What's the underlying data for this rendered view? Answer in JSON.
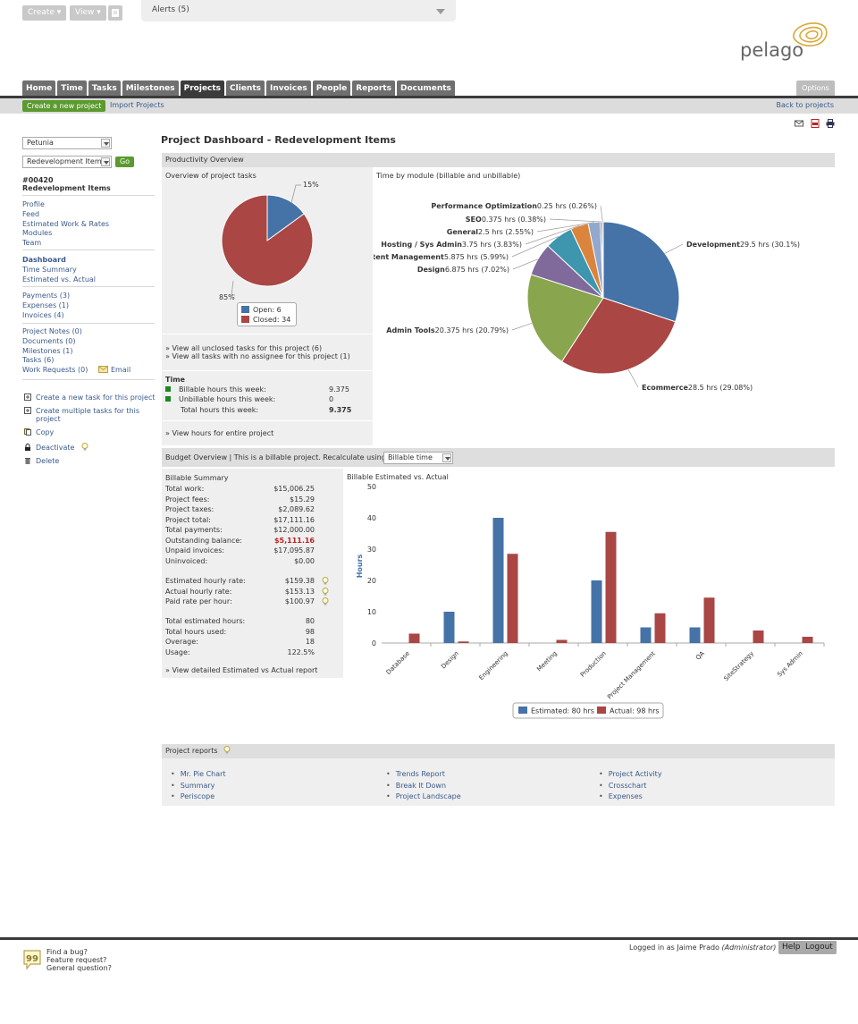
{
  "top": {
    "create_label": "Create ▾",
    "view_label": "View ▾",
    "alerts_label": "Alerts (5)",
    "logo_text": "pelago"
  },
  "nav": {
    "tabs": [
      "Home",
      "Time",
      "Tasks",
      "Milestones",
      "Projects",
      "Clients",
      "Invoices",
      "People",
      "Reports",
      "Documents"
    ],
    "active": "Projects",
    "options_label": "Options"
  },
  "subbar": {
    "create_label": "Create a new project",
    "import_label": "Import Projects",
    "back_label": "Back to projects"
  },
  "sidebar": {
    "client_select": "Petunia",
    "project_select": "Redevelopment Item",
    "go_label": "Go",
    "project_code": "#00420",
    "project_name": "Redevelopment Items",
    "group1": [
      "Profile",
      "Feed",
      "Estimated Work & Rates",
      "Modules",
      "Team"
    ],
    "dashboard": "Dashboard",
    "group2": [
      "Time Summary",
      "Estimated vs. Actual"
    ],
    "group3": [
      "Payments (3)",
      "Expenses (1)",
      "Invoices (4)"
    ],
    "group4": [
      "Project Notes (0)",
      "Documents (0)",
      "Milestones (1)",
      "Tasks (6)",
      "Work Requests (0)"
    ],
    "email_label": "Email",
    "actions": {
      "new_task": "Create a new task for this project",
      "multi_task_1": "Create multiple tasks for this",
      "multi_task_2": "project",
      "copy": "Copy",
      "deactivate": "Deactivate",
      "delete": "Delete"
    }
  },
  "main": {
    "title": "Project Dashboard - Redevelopment Items",
    "productivity": {
      "header": "Productivity Overview",
      "tasks_title": "Overview of project tasks",
      "pct_open": "15%",
      "pct_closed": "85%",
      "legend_open": "Open: 6",
      "legend_closed": "Closed: 34",
      "link_unclosed": "» View all unclosed tasks for this project (6)",
      "link_unassigned": "» View all tasks with no assignee for this project (1)",
      "time_title": "Time",
      "billable_label": "Billable hours this week:",
      "billable_value": "9.375",
      "unbillable_label": "Unbillable hours this week:",
      "unbillable_value": "0",
      "total_label": "Total hours this week:",
      "total_value": "9.375",
      "link_hours": "» View hours for entire project",
      "module_title": "Time by module (billable and unbillable)"
    },
    "budget": {
      "header": "Budget Overview | This is a billable project. Recalculate using:",
      "recalc_select": "Billable time",
      "summary_title": "Billable Summary",
      "rows1": [
        {
          "label": "Total work:",
          "value": "$15,006.25"
        },
        {
          "label": "Project fees:",
          "value": "$15.29"
        },
        {
          "label": "Project taxes:",
          "value": "$2,089.62"
        },
        {
          "label": "Project total:",
          "value": "$17,111.16"
        },
        {
          "label": "Total payments:",
          "value": "$12,000.00"
        },
        {
          "label": "Outstanding balance:",
          "value": "$5,111.16"
        },
        {
          "label": "Unpaid invoices:",
          "value": "$17,095.87"
        },
        {
          "label": "Uninvoiced:",
          "value": "$0.00"
        }
      ],
      "rows2": [
        {
          "label": "Estimated hourly rate:",
          "value": "$159.38"
        },
        {
          "label": "Actual hourly rate:",
          "value": "$153.13"
        },
        {
          "label": "Paid rate per hour:",
          "value": "$100.97"
        }
      ],
      "rows3": [
        {
          "label": "Total estimated hours:",
          "value": "80"
        },
        {
          "label": "Total hours used:",
          "value": "98"
        },
        {
          "label": "Overage:",
          "value": "18"
        },
        {
          "label": "Usage:",
          "value": "122.5%"
        }
      ],
      "link_report": "» View detailed Estimated vs Actual report",
      "chart_title": "Billable Estimated vs. Actual"
    },
    "reports": {
      "header": "Project reports",
      "col1": [
        "Mr. Pie Chart",
        "Summary",
        "Periscope"
      ],
      "col2": [
        "Trends Report",
        "Break It Down",
        "Project Landscape"
      ],
      "col3": [
        "Project Activity",
        "Crosschart",
        "Expenses"
      ]
    }
  },
  "footer": {
    "bug": "Find a bug?",
    "feature": "Feature request?",
    "general": "General question?",
    "logged_in": "Logged in as Jaime Prado",
    "role": "(Administrator)",
    "help": "Help",
    "logout": "Logout"
  },
  "colors": {
    "blue": "#4572a7",
    "red": "#aa4643",
    "green": "#89a54e",
    "purple": "#80699b",
    "teal": "#3d96ae",
    "orange": "#db843d",
    "lightblue": "#92a8cd"
  },
  "chart_data": [
    {
      "type": "pie",
      "labels": [
        "Open: 6",
        "Closed: 34"
      ],
      "values": [
        6,
        34
      ],
      "percent_labels": [
        "15%",
        "85%"
      ]
    },
    {
      "type": "pie",
      "title": "Time by module (billable and unbillable)",
      "slices": [
        {
          "name": "Development",
          "label": "29.5 hrs (30.1%)",
          "value": 29.5
        },
        {
          "name": "Ecommerce",
          "label": "28.5 hrs (29.08%)",
          "value": 28.5
        },
        {
          "name": "Admin Tools",
          "label": "20.375 hrs (20.79%)",
          "value": 20.375
        },
        {
          "name": "Design",
          "label": "6.875 hrs (7.02%)",
          "value": 6.875
        },
        {
          "name": "Content Management",
          "label": "5.875 hrs (5.99%)",
          "value": 5.875
        },
        {
          "name": "Hosting / Sys Admin",
          "label": "3.75 hrs (3.83%)",
          "value": 3.75
        },
        {
          "name": "General",
          "label": "2.5 hrs (2.55%)",
          "value": 2.5
        },
        {
          "name": "SEO",
          "label": "0.375 hrs (0.38%)",
          "value": 0.375
        },
        {
          "name": "Performance Optimization",
          "label": "0.25 hrs (0.26%)",
          "value": 0.25
        }
      ]
    },
    {
      "type": "bar",
      "title": "Billable Estimated vs. Actual",
      "ylabel": "Hours",
      "ylim": [
        0,
        50
      ],
      "yticks": [
        0,
        10,
        20,
        30,
        40,
        50
      ],
      "categories": [
        "Database",
        "Design",
        "Engineering",
        "Meeting",
        "Production",
        "Project Management",
        "QA",
        "SiteStrategy",
        "Sys Admin"
      ],
      "series": [
        {
          "name": "Estimated: 80 hrs",
          "values": [
            0,
            10,
            40,
            0,
            20,
            5,
            5,
            0,
            0
          ]
        },
        {
          "name": "Actual: 98 hrs",
          "values": [
            3,
            0.5,
            28.5,
            1,
            35.5,
            9.5,
            14.5,
            4,
            2
          ]
        }
      ]
    }
  ]
}
